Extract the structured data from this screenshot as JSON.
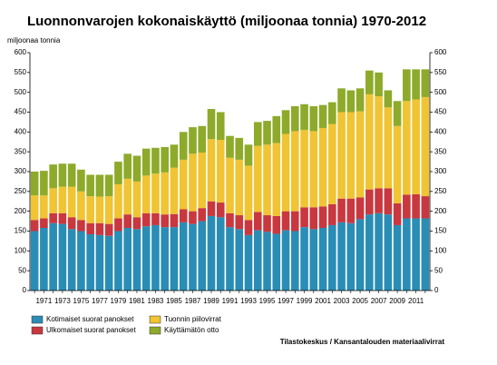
{
  "chart_data": {
    "type": "stacked-bar",
    "title": "Luonnonvarojen kokonaiskäyttö (miljoonaa tonnia) 1970-2012",
    "y_label": "miljoonaa tonnia",
    "source": "Tilastokeskus / Kansantalouden materiaalivirrat",
    "categories": [
      null,
      "1971",
      null,
      "1973",
      null,
      "1975",
      null,
      "1977",
      null,
      "1979",
      null,
      "1981",
      null,
      "1983",
      null,
      "1985",
      null,
      "1987",
      null,
      "1989",
      null,
      "1991",
      null,
      "1993",
      null,
      "1995",
      null,
      "1997",
      null,
      "1999",
      null,
      "2001",
      null,
      "2003",
      null,
      "2005",
      null,
      "2007",
      null,
      "2009",
      null,
      "2011",
      null
    ],
    "series": [
      {
        "name": "Kotimaiset suorat panokset",
        "color": "#2a8db5",
        "values": [
          150,
          158,
          170,
          168,
          155,
          150,
          142,
          140,
          138,
          150,
          158,
          155,
          162,
          165,
          160,
          160,
          172,
          168,
          175,
          188,
          185,
          160,
          155,
          140,
          152,
          148,
          143,
          152,
          150,
          160,
          155,
          158,
          165,
          172,
          170,
          180,
          192,
          195,
          192,
          165,
          182,
          182,
          182
        ]
      },
      {
        "name": "Ulkomaiset suorat panokset",
        "color": "#c9373f",
        "values": [
          28,
          24,
          25,
          27,
          30,
          28,
          28,
          30,
          30,
          32,
          34,
          30,
          33,
          30,
          32,
          33,
          33,
          32,
          33,
          37,
          37,
          35,
          35,
          38,
          46,
          42,
          45,
          48,
          50,
          50,
          55,
          54,
          53,
          60,
          62,
          55,
          63,
          63,
          66,
          55,
          60,
          61,
          56
        ]
      },
      {
        "name": "Tuonnin piilovirrat",
        "color": "#f0c432",
        "values": [
          62,
          58,
          63,
          67,
          77,
          72,
          68,
          67,
          70,
          86,
          90,
          90,
          95,
          100,
          106,
          117,
          125,
          145,
          140,
          157,
          158,
          140,
          140,
          137,
          167,
          178,
          184,
          195,
          202,
          195,
          192,
          198,
          202,
          218,
          218,
          217,
          240,
          232,
          204,
          195,
          236,
          239,
          250
        ]
      },
      {
        "name": "Käyttämätön otto",
        "color": "#8daa2b",
        "values": [
          60,
          62,
          60,
          58,
          58,
          55,
          54,
          55,
          54,
          57,
          63,
          65,
          68,
          65,
          64,
          58,
          70,
          67,
          67,
          76,
          70,
          55,
          55,
          53,
          60,
          60,
          68,
          60,
          63,
          65,
          63,
          58,
          55,
          60,
          55,
          58,
          60,
          60,
          43,
          63,
          80,
          76,
          70
        ]
      }
    ],
    "ylim": [
      0,
      600
    ],
    "yticks": [
      0,
      50,
      100,
      150,
      200,
      250,
      300,
      350,
      400,
      450,
      500,
      550,
      600
    ]
  }
}
